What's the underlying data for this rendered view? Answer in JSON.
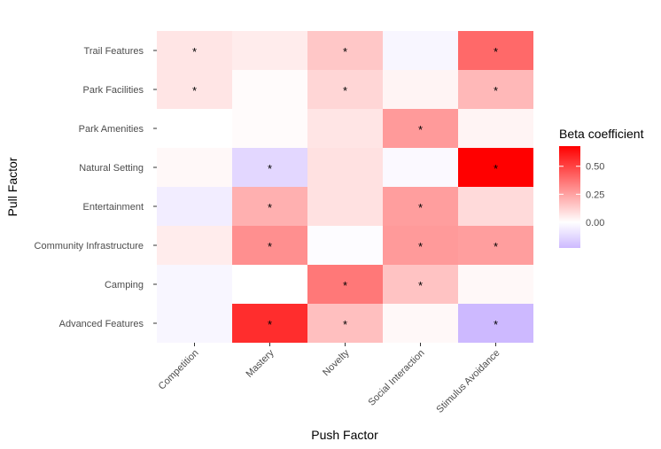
{
  "chart_data": {
    "type": "heatmap",
    "title": "",
    "xlabel": "Push Factor",
    "ylabel": "Pull Factor",
    "x_categories": [
      "Competition",
      "Mastery",
      "Novelty",
      "Social Interaction",
      "Stimulus Avoidance"
    ],
    "y_categories": [
      "Trail Features",
      "Park Facilities",
      "Park Amenities",
      "Natural Setting",
      "Entertainment",
      "Community Infrastructure",
      "Camping",
      "Advanced Features"
    ],
    "values": [
      [
        0.07,
        0.05,
        0.15,
        -0.03,
        0.4
      ],
      [
        0.07,
        0.01,
        0.11,
        0.03,
        0.19
      ],
      [
        0.0,
        0.01,
        0.07,
        0.27,
        0.03
      ],
      [
        0.02,
        -0.13,
        0.08,
        -0.02,
        0.68
      ],
      [
        -0.06,
        0.21,
        0.08,
        0.26,
        0.1
      ],
      [
        0.05,
        0.3,
        -0.01,
        0.27,
        0.26
      ],
      [
        -0.03,
        0.0,
        0.36,
        0.16,
        0.02
      ],
      [
        -0.03,
        0.56,
        0.17,
        0.02,
        -0.23
      ]
    ],
    "significant": [
      [
        true,
        false,
        true,
        false,
        true
      ],
      [
        true,
        false,
        true,
        false,
        true
      ],
      [
        false,
        false,
        false,
        true,
        false
      ],
      [
        false,
        true,
        false,
        false,
        true
      ],
      [
        false,
        true,
        false,
        true,
        false
      ],
      [
        false,
        true,
        false,
        true,
        true
      ],
      [
        false,
        false,
        true,
        true,
        false
      ],
      [
        false,
        true,
        true,
        false,
        true
      ]
    ],
    "significance_marker": "*",
    "legend": {
      "title": "Beta coefficient",
      "ticks": [
        0.5,
        0.25,
        0.0
      ],
      "tick_labels": [
        "0.50",
        "0.25",
        "0.00"
      ],
      "placement": "right"
    },
    "color_scale": {
      "min": -0.23,
      "mid": 0,
      "max": 0.68,
      "low_color": "#cdb9ff",
      "mid_color": "#ffffff",
      "high_color": "#ff0000"
    },
    "grid": true
  }
}
